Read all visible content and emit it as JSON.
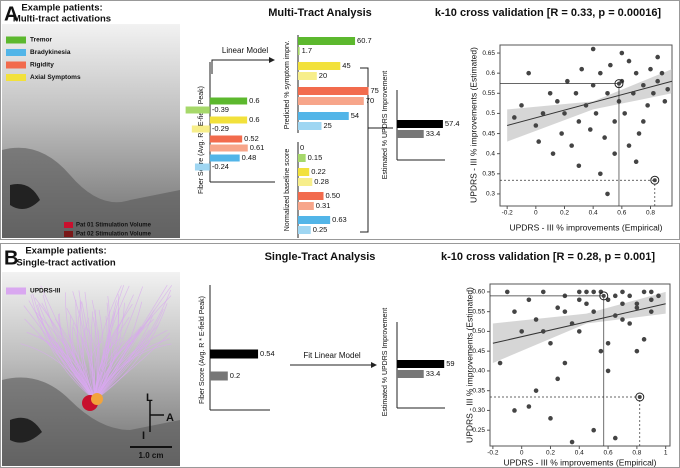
{
  "panels": [
    {
      "label": "A",
      "heading": [
        "Example patients:",
        "Multi-tract activations"
      ],
      "title": "Multi-Tract Analysis",
      "cv": "k-10 cross validation [R = 0.33, p = 0.00016]",
      "model": "Linear Model",
      "legend": [
        {
          "name": "Tremor",
          "color": "#5cb82e"
        },
        {
          "name": "Bradykinesia",
          "color": "#52b5e8"
        },
        {
          "name": "Rigidity",
          "color": "#f26b4d"
        },
        {
          "name": "Axial Symptoms",
          "color": "#f2e13b"
        }
      ],
      "stim_legend": [
        {
          "name": "Pat 01 Stimulation Volume",
          "color": "#c8102e"
        },
        {
          "name": "Pat 02 Stimulation Volume",
          "color": "#7a1818"
        }
      ]
    },
    {
      "label": "B",
      "heading": [
        "Example patients:",
        "Single-tract activation"
      ],
      "title": "Single-Tract Analysis",
      "cv": "k-10 cross validation [R = 0.28, p = 0.001]",
      "model": "Fit Linear Model",
      "legend": [
        {
          "name": "UPDRS-III",
          "color": "#d9a8f0"
        }
      ],
      "orientation": [
        "L",
        "A",
        "I"
      ],
      "scale_bar": "1.0 cm"
    }
  ],
  "chart_data": [
    {
      "type": "hbar",
      "y_label": "Fiber Score (Avg. R * E-field Peak)",
      "values": [
        0.6,
        -0.39,
        0.6,
        -0.29,
        0.52,
        0.61,
        0.48,
        -0.24
      ],
      "colors": [
        "#5cb82e",
        "#a6d86a",
        "#f2e13b",
        "#f7ee8a",
        "#f26b4d",
        "#f7a58a",
        "#52b5e8",
        "#9fd6f2"
      ],
      "xlim": [
        -0.4,
        1
      ]
    },
    {
      "type": "hbar",
      "y_label": "Predicted % symptom imprv.",
      "values": [
        60.7,
        1.7,
        45,
        20,
        75,
        70,
        54,
        25
      ],
      "colors": [
        "#5cb82e",
        "#a6d86a",
        "#f2e13b",
        "#f7ee8a",
        "#f26b4d",
        "#f7a58a",
        "#52b5e8",
        "#9fd6f2"
      ],
      "xlim": [
        0,
        100
      ]
    },
    {
      "type": "hbar",
      "y_label": "Normalized baseline score",
      "values": [
        0,
        0.15,
        0.22,
        0.28,
        0.5,
        0.31,
        0.63,
        0.25
      ],
      "value_labels": [
        "0",
        "0.15",
        "0.22",
        "0.28",
        "0.50",
        "0.31",
        "0.63",
        "0.25"
      ],
      "colors": [
        "#5cb82e",
        "#a6d86a",
        "#f2e13b",
        "#f7ee8a",
        "#f26b4d",
        "#f7a58a",
        "#52b5e8",
        "#9fd6f2"
      ],
      "xlim": [
        0,
        1
      ]
    },
    {
      "type": "hbar",
      "y_label": "Estimated % UPDRS Improvement",
      "values": [
        57.4,
        33.4
      ],
      "colors": [
        "#000000",
        "#777777"
      ],
      "xlim": [
        0,
        100
      ]
    },
    {
      "type": "scatter",
      "x_label": "UPDRS - III % improvements (Empirical)",
      "y_label": "UPDRS - III % improvements (Estimated)",
      "xlim": [
        -0.25,
        0.95
      ],
      "ylim": [
        0.27,
        0.67
      ],
      "xticks": [
        -0.2,
        0,
        0.2,
        0.4,
        0.6,
        0.8
      ],
      "yticks": [
        0.3,
        0.35,
        0.4,
        0.45,
        0.5,
        0.55,
        0.6,
        0.65
      ],
      "color": "#444444",
      "x": [
        -0.15,
        -0.1,
        -0.05,
        0,
        0.02,
        0.05,
        0.1,
        0.12,
        0.15,
        0.18,
        0.2,
        0.22,
        0.25,
        0.28,
        0.3,
        0.32,
        0.35,
        0.38,
        0.4,
        0.42,
        0.45,
        0.48,
        0.5,
        0.52,
        0.55,
        0.58,
        0.6,
        0.62,
        0.65,
        0.68,
        0.7,
        0.72,
        0.75,
        0.78,
        0.8,
        0.82,
        0.85,
        0.88,
        0.9,
        0.92,
        0.3,
        0.45,
        0.55,
        0.65,
        0.75,
        0.85,
        0.4,
        0.6,
        0.7,
        0.5
      ],
      "y": [
        0.49,
        0.52,
        0.6,
        0.47,
        0.43,
        0.5,
        0.55,
        0.4,
        0.53,
        0.45,
        0.5,
        0.58,
        0.42,
        0.55,
        0.48,
        0.61,
        0.52,
        0.46,
        0.57,
        0.5,
        0.6,
        0.44,
        0.55,
        0.62,
        0.48,
        0.53,
        0.58,
        0.5,
        0.63,
        0.55,
        0.6,
        0.45,
        0.57,
        0.52,
        0.61,
        0.55,
        0.58,
        0.6,
        0.53,
        0.56,
        0.37,
        0.35,
        0.4,
        0.42,
        0.48,
        0.64,
        0.66,
        0.65,
        0.38,
        0.3
      ],
      "highlight": {
        "x": [
          0.58,
          0.83
        ],
        "y": [
          0.574,
          0.334
        ]
      },
      "fit": {
        "x": [
          -0.2,
          0.95
        ],
        "y": [
          0.47,
          0.58
        ]
      },
      "band": {
        "x": [
          -0.2,
          0.4,
          0.95
        ],
        "upper": [
          0.51,
          0.53,
          0.61
        ],
        "lower": [
          0.43,
          0.51,
          0.55
        ]
      }
    },
    {
      "type": "hbar",
      "y_label": "Fiber Score (Avg. R * E-field Peak)",
      "values": [
        0.54,
        0.2
      ],
      "colors": [
        "#000000",
        "#777777"
      ],
      "xlim": [
        0,
        1
      ]
    },
    {
      "type": "hbar",
      "y_label": "Estimated % UPDRS Improvement",
      "values": [
        59,
        33.4
      ],
      "colors": [
        "#000000",
        "#777777"
      ],
      "xlim": [
        0,
        100
      ]
    },
    {
      "type": "scatter",
      "x_label": "UPDRS - III % improvements (Empirical)",
      "y_label": "UPDRS - III % improvements (Estimated)",
      "xlim": [
        -0.22,
        1.03
      ],
      "ylim": [
        0.21,
        0.62
      ],
      "xticks": [
        -0.2,
        0,
        0.2,
        0.4,
        0.6,
        0.8,
        1
      ],
      "yticks": [
        0.25,
        {
          "value": 0.3,
          "label": "0.30"
        },
        0.35,
        {
          "value": 0.4,
          "label": "0.40"
        },
        0.45,
        {
          "value": 0.5,
          "label": "0.50"
        },
        0.55,
        {
          "value": 0.6,
          "label": "0.60"
        }
      ],
      "color": "#444444",
      "x": [
        -0.15,
        -0.1,
        -0.05,
        0,
        0.05,
        0.1,
        0.15,
        0.2,
        0.25,
        0.3,
        0.35,
        0.4,
        0.45,
        0.5,
        0.55,
        0.6,
        0.65,
        0.7,
        0.75,
        0.8,
        0.85,
        0.9,
        0.95,
        0.1,
        0.2,
        0.3,
        0.4,
        0.5,
        0.6,
        0.7,
        0.8,
        0.9,
        0.45,
        0.55,
        0.65,
        0.75,
        0.35,
        0.25,
        0.05,
        -0.05,
        0.6,
        0.7,
        0.8,
        0.4,
        0.3,
        0.5,
        0.15,
        0.9,
        0.65,
        0.85
      ],
      "y": [
        0.42,
        0.6,
        0.55,
        0.5,
        0.58,
        0.53,
        0.6,
        0.47,
        0.56,
        0.59,
        0.52,
        0.6,
        0.57,
        0.55,
        0.6,
        0.58,
        0.54,
        0.6,
        0.59,
        0.57,
        0.6,
        0.58,
        0.59,
        0.35,
        0.28,
        0.42,
        0.5,
        0.25,
        0.47,
        0.53,
        0.56,
        0.55,
        0.6,
        0.45,
        0.59,
        0.52,
        0.22,
        0.38,
        0.31,
        0.3,
        0.4,
        0.57,
        0.45,
        0.58,
        0.55,
        0.6,
        0.5,
        0.6,
        0.23,
        0.48
      ],
      "highlight": {
        "x": [
          0.57,
          0.82
        ],
        "y": [
          0.59,
          0.334
        ]
      },
      "fit": {
        "x": [
          -0.2,
          1
        ],
        "y": [
          0.47,
          0.57
        ]
      },
      "band": {
        "x": [
          -0.2,
          0.45,
          1
        ],
        "upper": [
          0.52,
          0.545,
          0.6
        ],
        "lower": [
          0.42,
          0.52,
          0.545
        ]
      }
    }
  ]
}
